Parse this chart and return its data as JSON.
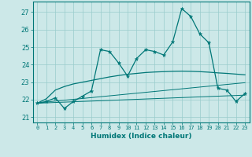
{
  "xlabel": "Humidex (Indice chaleur)",
  "background_color": "#cce8e8",
  "grid_color": "#99cccc",
  "line_color": "#007777",
  "xlim": [
    -0.5,
    23.5
  ],
  "ylim": [
    20.7,
    27.6
  ],
  "yticks": [
    21,
    22,
    23,
    24,
    25,
    26,
    27
  ],
  "xticks": [
    0,
    1,
    2,
    3,
    4,
    5,
    6,
    7,
    8,
    9,
    10,
    11,
    12,
    13,
    14,
    15,
    16,
    17,
    18,
    19,
    20,
    21,
    22,
    23
  ],
  "main_y": [
    21.8,
    21.9,
    22.1,
    21.5,
    21.9,
    22.2,
    22.5,
    24.85,
    24.75,
    24.1,
    23.35,
    24.35,
    24.85,
    24.75,
    24.55,
    25.3,
    27.2,
    26.75,
    25.75,
    25.25,
    22.65,
    22.55,
    21.9,
    22.35
  ],
  "line2_y": [
    21.8,
    22.05,
    22.55,
    22.75,
    22.9,
    23.0,
    23.1,
    23.2,
    23.3,
    23.38,
    23.45,
    23.5,
    23.55,
    23.58,
    23.6,
    23.62,
    23.63,
    23.62,
    23.6,
    23.57,
    23.53,
    23.5,
    23.46,
    23.42
  ],
  "line3_y": [
    21.8,
    21.86,
    21.92,
    21.97,
    22.02,
    22.07,
    22.12,
    22.17,
    22.22,
    22.27,
    22.32,
    22.37,
    22.42,
    22.47,
    22.52,
    22.57,
    22.62,
    22.67,
    22.72,
    22.77,
    22.82,
    22.87,
    22.92,
    22.97
  ],
  "line4_y": [
    21.8,
    21.82,
    21.84,
    21.86,
    21.88,
    21.9,
    21.92,
    21.94,
    21.96,
    21.98,
    22.0,
    22.02,
    22.04,
    22.06,
    22.08,
    22.1,
    22.12,
    22.14,
    22.16,
    22.18,
    22.2,
    22.22,
    22.24,
    22.26
  ]
}
